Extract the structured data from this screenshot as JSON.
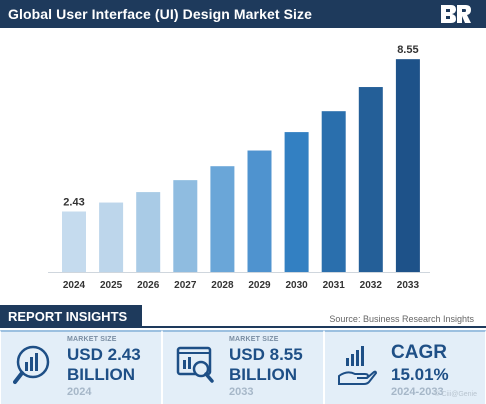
{
  "header": {
    "title": "Global User Interface (UI) Design Market Size",
    "logo_icon": "br-logo-icon"
  },
  "chart_data": {
    "type": "bar",
    "title": "Global User Interface (UI) Design Market Size",
    "categories": [
      "2024",
      "2025",
      "2026",
      "2027",
      "2028",
      "2029",
      "2030",
      "2031",
      "2032",
      "2033"
    ],
    "values": [
      2.43,
      2.79,
      3.21,
      3.69,
      4.25,
      4.88,
      5.62,
      6.46,
      7.43,
      8.55
    ],
    "value_labels": {
      "0": "2.43",
      "9": "8.55"
    },
    "ylim": [
      0,
      9.4
    ],
    "grid": false,
    "bar_colors": [
      "#c5dbee",
      "#bdd6eb",
      "#a9cbe6",
      "#8fbce0",
      "#6aa6d8",
      "#4f93cf",
      "#3380c2",
      "#2a6fad",
      "#245f98",
      "#1e5289"
    ]
  },
  "insights": {
    "tab_label": "REPORT INSIGHTS",
    "source": "Source: Business Research Insights"
  },
  "cards": [
    {
      "label": "MARKET SIZE",
      "line1": "USD 2.43",
      "line2": "BILLION",
      "year": "2024",
      "icon": "market-chart-icon"
    },
    {
      "label": "MARKET SIZE",
      "line1": "USD 8.55",
      "line2": "BILLION",
      "year": "2033",
      "icon": "market-report-icon"
    },
    {
      "label": "",
      "line1": "CAGR",
      "line2": "15.01%",
      "year": "2024-2033",
      "icon": "growth-hand-icon"
    }
  ],
  "watermark": "© Ciii@​Genie"
}
